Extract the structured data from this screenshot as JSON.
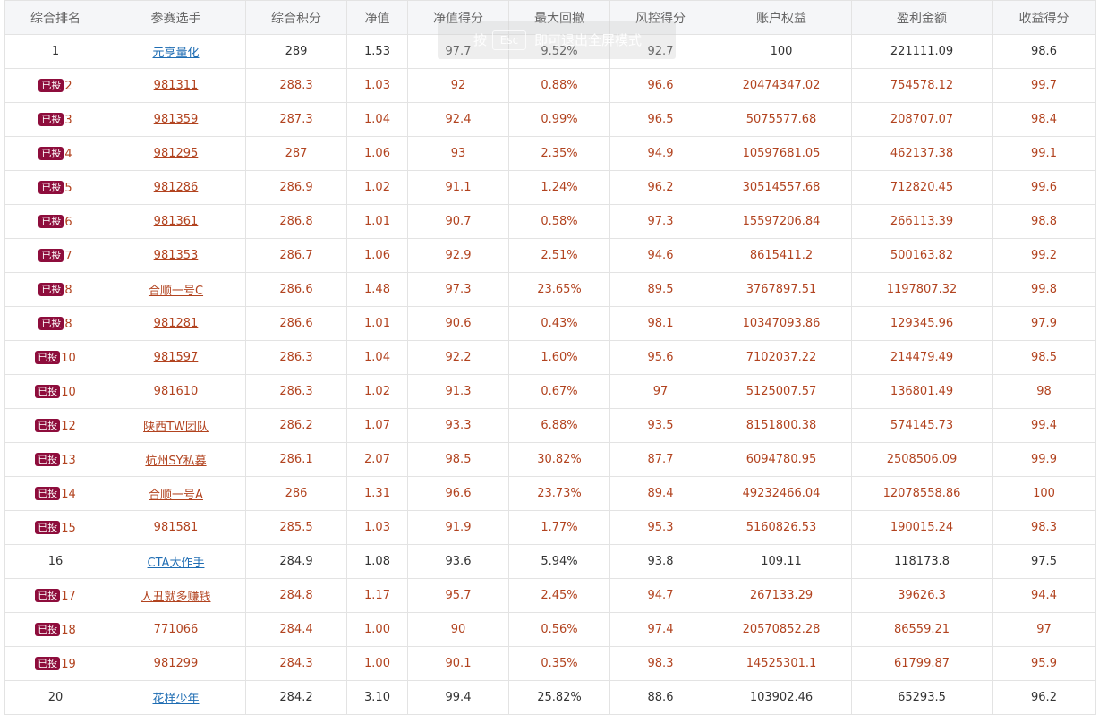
{
  "headers": [
    "综合排名",
    "参赛选手",
    "综合积分",
    "净值",
    "净值得分",
    "最大回撤",
    "风控得分",
    "账户权益",
    "盈利金额",
    "收益得分"
  ],
  "badge_label": "已投",
  "rows": [
    {
      "rank": "1",
      "player": "元亨量化",
      "score": "289",
      "nav": "1.53",
      "nav_score": "97.7",
      "max_dd": "9.52%",
      "risk_score": "92.7",
      "equity": "100",
      "profit": "221111.09",
      "return_score": "98.6",
      "invested": false
    },
    {
      "rank": "2",
      "player": "981311",
      "score": "288.3",
      "nav": "1.03",
      "nav_score": "92",
      "max_dd": "0.88%",
      "risk_score": "96.6",
      "equity": "20474347.02",
      "profit": "754578.12",
      "return_score": "99.7",
      "invested": true
    },
    {
      "rank": "3",
      "player": "981359",
      "score": "287.3",
      "nav": "1.04",
      "nav_score": "92.4",
      "max_dd": "0.99%",
      "risk_score": "96.5",
      "equity": "5075577.68",
      "profit": "208707.07",
      "return_score": "98.4",
      "invested": true
    },
    {
      "rank": "4",
      "player": "981295",
      "score": "287",
      "nav": "1.06",
      "nav_score": "93",
      "max_dd": "2.35%",
      "risk_score": "94.9",
      "equity": "10597681.05",
      "profit": "462137.38",
      "return_score": "99.1",
      "invested": true
    },
    {
      "rank": "5",
      "player": "981286",
      "score": "286.9",
      "nav": "1.02",
      "nav_score": "91.1",
      "max_dd": "1.24%",
      "risk_score": "96.2",
      "equity": "30514557.68",
      "profit": "712820.45",
      "return_score": "99.6",
      "invested": true
    },
    {
      "rank": "6",
      "player": "981361",
      "score": "286.8",
      "nav": "1.01",
      "nav_score": "90.7",
      "max_dd": "0.58%",
      "risk_score": "97.3",
      "equity": "15597206.84",
      "profit": "266113.39",
      "return_score": "98.8",
      "invested": true
    },
    {
      "rank": "7",
      "player": "981353",
      "score": "286.7",
      "nav": "1.06",
      "nav_score": "92.9",
      "max_dd": "2.51%",
      "risk_score": "94.6",
      "equity": "8615411.2",
      "profit": "500163.82",
      "return_score": "99.2",
      "invested": true
    },
    {
      "rank": "8",
      "player": "合顺一号C",
      "score": "286.6",
      "nav": "1.48",
      "nav_score": "97.3",
      "max_dd": "23.65%",
      "risk_score": "89.5",
      "equity": "3767897.51",
      "profit": "1197807.32",
      "return_score": "99.8",
      "invested": true
    },
    {
      "rank": "8",
      "player": "981281",
      "score": "286.6",
      "nav": "1.01",
      "nav_score": "90.6",
      "max_dd": "0.43%",
      "risk_score": "98.1",
      "equity": "10347093.86",
      "profit": "129345.96",
      "return_score": "97.9",
      "invested": true
    },
    {
      "rank": "10",
      "player": "981597",
      "score": "286.3",
      "nav": "1.04",
      "nav_score": "92.2",
      "max_dd": "1.60%",
      "risk_score": "95.6",
      "equity": "7102037.22",
      "profit": "214479.49",
      "return_score": "98.5",
      "invested": true
    },
    {
      "rank": "10",
      "player": "981610",
      "score": "286.3",
      "nav": "1.02",
      "nav_score": "91.3",
      "max_dd": "0.67%",
      "risk_score": "97",
      "equity": "5125007.57",
      "profit": "136801.49",
      "return_score": "98",
      "invested": true
    },
    {
      "rank": "12",
      "player": "陕西TW团队",
      "score": "286.2",
      "nav": "1.07",
      "nav_score": "93.3",
      "max_dd": "6.88%",
      "risk_score": "93.5",
      "equity": "8151800.38",
      "profit": "574145.73",
      "return_score": "99.4",
      "invested": true
    },
    {
      "rank": "13",
      "player": "杭州SY私募",
      "score": "286.1",
      "nav": "2.07",
      "nav_score": "98.5",
      "max_dd": "30.82%",
      "risk_score": "87.7",
      "equity": "6094780.95",
      "profit": "2508506.09",
      "return_score": "99.9",
      "invested": true
    },
    {
      "rank": "14",
      "player": "合顺一号A",
      "score": "286",
      "nav": "1.31",
      "nav_score": "96.6",
      "max_dd": "23.73%",
      "risk_score": "89.4",
      "equity": "49232466.04",
      "profit": "12078558.86",
      "return_score": "100",
      "invested": true
    },
    {
      "rank": "15",
      "player": "981581",
      "score": "285.5",
      "nav": "1.03",
      "nav_score": "91.9",
      "max_dd": "1.77%",
      "risk_score": "95.3",
      "equity": "5160826.53",
      "profit": "190015.24",
      "return_score": "98.3",
      "invested": true
    },
    {
      "rank": "16",
      "player": "CTA大作手",
      "score": "284.9",
      "nav": "1.08",
      "nav_score": "93.6",
      "max_dd": "5.94%",
      "risk_score": "93.8",
      "equity": "109.11",
      "profit": "118173.8",
      "return_score": "97.5",
      "invested": false
    },
    {
      "rank": "17",
      "player": "人丑就多赚钱",
      "score": "284.8",
      "nav": "1.17",
      "nav_score": "95.7",
      "max_dd": "2.45%",
      "risk_score": "94.7",
      "equity": "267133.29",
      "profit": "39626.3",
      "return_score": "94.4",
      "invested": true
    },
    {
      "rank": "18",
      "player": "771066",
      "score": "284.4",
      "nav": "1.00",
      "nav_score": "90",
      "max_dd": "0.56%",
      "risk_score": "97.4",
      "equity": "20570852.28",
      "profit": "86559.21",
      "return_score": "97",
      "invested": true
    },
    {
      "rank": "19",
      "player": "981299",
      "score": "284.3",
      "nav": "1.00",
      "nav_score": "90.1",
      "max_dd": "0.35%",
      "risk_score": "98.3",
      "equity": "14525301.1",
      "profit": "61799.87",
      "return_score": "95.9",
      "invested": true
    },
    {
      "rank": "20",
      "player": "花样少年",
      "score": "284.2",
      "nav": "3.10",
      "nav_score": "99.4",
      "max_dd": "25.82%",
      "risk_score": "88.6",
      "equity": "103902.46",
      "profit": "65293.5",
      "return_score": "96.2",
      "invested": false
    }
  ],
  "fullscreen_hint": {
    "prefix": "按",
    "key": "Esc",
    "suffix": "即可退出全屏模式"
  },
  "colors": {
    "invested_text": "#b2431f",
    "normal_link": "#1f6db3",
    "badge_bg": "#8e0d3c",
    "header_bg": "#f5f6f8"
  }
}
